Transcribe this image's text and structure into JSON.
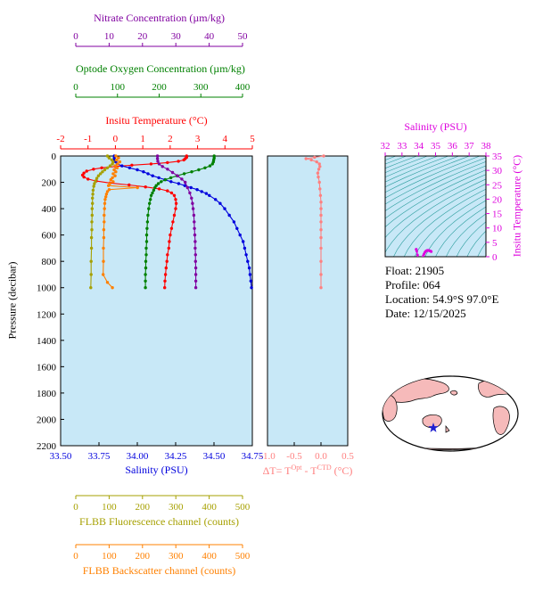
{
  "figure": {
    "plot_bg": "#c8e8f7",
    "contour_color": "#2b9d9d"
  },
  "axes": {
    "nitrate": {
      "label": "Nitrate Concentration (µm/kg)",
      "color": "#8000a0",
      "ticks": [
        0,
        10,
        20,
        30,
        40,
        50
      ],
      "range": [
        0,
        50
      ]
    },
    "oxygen": {
      "label": "Optode Oxygen Concentration (µm/kg)",
      "color": "#008000",
      "ticks": [
        0,
        100,
        200,
        300,
        400
      ],
      "range": [
        0,
        400
      ]
    },
    "temperature": {
      "label": "Insitu Temperature (°C)",
      "color": "#ff0000",
      "ticks": [
        -2,
        -1,
        0,
        1,
        2,
        3,
        4,
        5
      ],
      "range": [
        -2,
        5
      ]
    },
    "pressure": {
      "label": "Pressure (decibar)",
      "color": "#000000",
      "ticks": [
        0,
        200,
        400,
        600,
        800,
        1000,
        1200,
        1400,
        1600,
        1800,
        2000,
        2200
      ],
      "range": [
        0,
        2200
      ]
    },
    "salinity": {
      "label": "Salinity (PSU)",
      "color": "#0000dd",
      "ticks": [
        "33.50",
        "33.75",
        "34.00",
        "34.25",
        "34.50",
        "34.75"
      ],
      "range": [
        33.5,
        34.75
      ]
    },
    "delta_t": {
      "label_parts": {
        "pre": "ΔT= T",
        "sup1": "Opt",
        "mid": " - T",
        "sup2": "CTD",
        "post": " (°C)"
      },
      "color": "#ff8080",
      "ticks": [
        "-1.0",
        "-0.5",
        "0.0",
        "0.5"
      ],
      "range": [
        -1,
        0.5
      ]
    },
    "fluorescence": {
      "label": "FLBB Fluorescence channel (counts)",
      "color": "#a6a000",
      "ticks": [
        0,
        100,
        200,
        300,
        400,
        500
      ],
      "range": [
        0,
        500
      ]
    },
    "backscatter": {
      "label": "FLBB Backscatter channel (counts)",
      "color": "#ff8000",
      "ticks": [
        0,
        100,
        200,
        300,
        400,
        500
      ],
      "range": [
        0,
        500
      ]
    },
    "ts_salinity": {
      "label": "Salinity (PSU)",
      "color": "#dd00dd",
      "ticks": [
        32,
        33,
        34,
        35,
        36,
        37,
        38
      ],
      "range": [
        32,
        38
      ]
    },
    "ts_temperature": {
      "label": "Insitu Temperature (°C)",
      "color": "#dd00dd",
      "ticks": [
        0,
        5,
        10,
        15,
        20,
        25,
        30,
        35
      ],
      "range": [
        0,
        35
      ]
    }
  },
  "info": {
    "float": "Float:  21905",
    "profile": "Profile:  064",
    "location": "Location:  54.9°S  97.0°E",
    "date": "Date:  12/15/2025"
  },
  "map": {
    "land_color": "#f6baba",
    "ocean_color": "#ffffff",
    "star_color": "#2020d0"
  },
  "chart_data": [
    {
      "type": "line",
      "name": "temperature_profile",
      "x_axis": "Insitu Temperature (°C)",
      "y_axis": "Pressure (decibar)",
      "xlim": [
        -2,
        5
      ],
      "ylim": [
        0,
        2200
      ],
      "color": "#ff0000",
      "points": [
        [
          2.6,
          0
        ],
        [
          2.6,
          10
        ],
        [
          2.55,
          20
        ],
        [
          2.5,
          30
        ],
        [
          2.3,
          40
        ],
        [
          1.9,
          50
        ],
        [
          1.3,
          60
        ],
        [
          0.6,
          70
        ],
        [
          0.0,
          80
        ],
        [
          -0.5,
          90
        ],
        [
          -0.8,
          100
        ],
        [
          -1.05,
          115
        ],
        [
          -1.15,
          130
        ],
        [
          -1.2,
          145
        ],
        [
          -1.15,
          160
        ],
        [
          -1.0,
          175
        ],
        [
          -0.7,
          190
        ],
        [
          -0.2,
          205
        ],
        [
          0.5,
          220
        ],
        [
          1.1,
          235
        ],
        [
          1.6,
          250
        ],
        [
          1.9,
          265
        ],
        [
          2.05,
          280
        ],
        [
          2.15,
          300
        ],
        [
          2.2,
          330
        ],
        [
          2.22,
          360
        ],
        [
          2.2,
          400
        ],
        [
          2.15,
          450
        ],
        [
          2.1,
          500
        ],
        [
          2.05,
          550
        ],
        [
          2.0,
          600
        ],
        [
          1.97,
          650
        ],
        [
          1.95,
          700
        ],
        [
          1.9,
          750
        ],
        [
          1.88,
          800
        ],
        [
          1.85,
          850
        ],
        [
          1.83,
          900
        ],
        [
          1.81,
          950
        ],
        [
          1.8,
          1000
        ]
      ]
    },
    {
      "type": "line",
      "name": "salinity_profile",
      "x_axis": "Salinity (PSU)",
      "y_axis": "Pressure (decibar)",
      "xlim": [
        33.5,
        34.75
      ],
      "ylim": [
        0,
        2200
      ],
      "color": "#0000dd",
      "points": [
        [
          33.85,
          0
        ],
        [
          33.85,
          15
        ],
        [
          33.85,
          30
        ],
        [
          33.86,
          45
        ],
        [
          33.87,
          60
        ],
        [
          33.9,
          75
        ],
        [
          33.95,
          90
        ],
        [
          34.0,
          105
        ],
        [
          34.04,
          120
        ],
        [
          34.07,
          135
        ],
        [
          34.1,
          150
        ],
        [
          34.14,
          165
        ],
        [
          34.18,
          180
        ],
        [
          34.22,
          195
        ],
        [
          34.27,
          210
        ],
        [
          34.31,
          225
        ],
        [
          34.35,
          240
        ],
        [
          34.39,
          255
        ],
        [
          34.42,
          270
        ],
        [
          34.45,
          285
        ],
        [
          34.47,
          300
        ],
        [
          34.51,
          330
        ],
        [
          34.54,
          360
        ],
        [
          34.57,
          400
        ],
        [
          34.6,
          450
        ],
        [
          34.63,
          500
        ],
        [
          34.65,
          550
        ],
        [
          34.67,
          600
        ],
        [
          34.69,
          650
        ],
        [
          34.7,
          700
        ],
        [
          34.71,
          750
        ],
        [
          34.72,
          800
        ],
        [
          34.73,
          850
        ],
        [
          34.735,
          900
        ],
        [
          34.74,
          950
        ],
        [
          34.745,
          1000
        ]
      ]
    },
    {
      "type": "line",
      "name": "oxygen_profile",
      "x_axis": "Optode Oxygen Concentration (µm/kg)",
      "y_axis": "Pressure (decibar)",
      "xlim": [
        0,
        400
      ],
      "ylim": [
        0,
        2200
      ],
      "color": "#008000",
      "points": [
        [
          332,
          0
        ],
        [
          332,
          15
        ],
        [
          331,
          30
        ],
        [
          330,
          45
        ],
        [
          328,
          60
        ],
        [
          322,
          75
        ],
        [
          310,
          90
        ],
        [
          295,
          105
        ],
        [
          278,
          120
        ],
        [
          260,
          135
        ],
        [
          243,
          150
        ],
        [
          228,
          165
        ],
        [
          215,
          180
        ],
        [
          205,
          195
        ],
        [
          198,
          210
        ],
        [
          193,
          225
        ],
        [
          190,
          240
        ],
        [
          187,
          260
        ],
        [
          184,
          280
        ],
        [
          181,
          300
        ],
        [
          179,
          330
        ],
        [
          177,
          360
        ],
        [
          175,
          400
        ],
        [
          173,
          450
        ],
        [
          172,
          500
        ],
        [
          171,
          550
        ],
        [
          170,
          600
        ],
        [
          170,
          650
        ],
        [
          169,
          700
        ],
        [
          169,
          750
        ],
        [
          168,
          800
        ],
        [
          168,
          850
        ],
        [
          167,
          900
        ],
        [
          167,
          950
        ],
        [
          167,
          1000
        ]
      ]
    },
    {
      "type": "line",
      "name": "nitrate_profile",
      "x_axis": "Nitrate Concentration (µm/kg)",
      "y_axis": "Pressure (decibar)",
      "xlim": [
        0,
        50
      ],
      "ylim": [
        0,
        2200
      ],
      "color": "#8000a0",
      "points": [
        [
          24.5,
          0
        ],
        [
          24.5,
          20
        ],
        [
          24.6,
          40
        ],
        [
          25,
          60
        ],
        [
          26,
          80
        ],
        [
          27.5,
          100
        ],
        [
          29,
          125
        ],
        [
          30.5,
          150
        ],
        [
          31.8,
          175
        ],
        [
          32.8,
          200
        ],
        [
          33.5,
          240
        ],
        [
          34.2,
          280
        ],
        [
          34.7,
          320
        ],
        [
          35.0,
          360
        ],
        [
          35.2,
          400
        ],
        [
          35.4,
          450
        ],
        [
          35.5,
          500
        ],
        [
          35.6,
          550
        ],
        [
          35.7,
          600
        ],
        [
          35.8,
          650
        ],
        [
          35.8,
          700
        ],
        [
          35.9,
          750
        ],
        [
          35.9,
          800
        ],
        [
          36.0,
          850
        ],
        [
          36.0,
          900
        ],
        [
          36.0,
          950
        ],
        [
          36.0,
          1000
        ]
      ]
    },
    {
      "type": "line",
      "name": "fluorescence_profile",
      "x_axis": "FLBB Fluorescence channel (counts)",
      "y_axis": "Pressure (decibar)",
      "xlim": [
        0,
        500
      ],
      "ylim": [
        0,
        2200
      ],
      "color": "#a6a000",
      "points": [
        [
          95,
          0
        ],
        [
          100,
          15
        ],
        [
          108,
          30
        ],
        [
          112,
          45
        ],
        [
          110,
          60
        ],
        [
          103,
          75
        ],
        [
          95,
          90
        ],
        [
          87,
          105
        ],
        [
          80,
          120
        ],
        [
          74,
          135
        ],
        [
          68,
          150
        ],
        [
          63,
          170
        ],
        [
          59,
          190
        ],
        [
          56,
          210
        ],
        [
          54,
          230
        ],
        [
          52,
          260
        ],
        [
          51,
          290
        ],
        [
          50,
          320
        ],
        [
          50,
          360
        ],
        [
          49,
          400
        ],
        [
          49,
          450
        ],
        [
          48,
          500
        ],
        [
          48,
          560
        ],
        [
          47,
          620
        ],
        [
          47,
          700
        ],
        [
          46,
          800
        ],
        [
          46,
          900
        ],
        [
          45,
          1000
        ]
      ]
    },
    {
      "type": "line",
      "name": "backscatter_profile",
      "x_axis": "FLBB Backscatter channel (counts)",
      "y_axis": "Pressure (decibar)",
      "xlim": [
        0,
        500
      ],
      "ylim": [
        0,
        2200
      ],
      "color": "#ff8000",
      "points": [
        [
          120,
          0
        ],
        [
          128,
          15
        ],
        [
          122,
          30
        ],
        [
          132,
          45
        ],
        [
          125,
          60
        ],
        [
          118,
          75
        ],
        [
          124,
          90
        ],
        [
          115,
          105
        ],
        [
          120,
          120
        ],
        [
          112,
          135
        ],
        [
          118,
          150
        ],
        [
          110,
          165
        ],
        [
          105,
          180
        ],
        [
          112,
          195
        ],
        [
          102,
          210
        ],
        [
          98,
          225
        ],
        [
          185,
          240
        ],
        [
          100,
          255
        ],
        [
          95,
          270
        ],
        [
          92,
          290
        ],
        [
          90,
          310
        ],
        [
          88,
          330
        ],
        [
          87,
          360
        ],
        [
          86,
          400
        ],
        [
          85,
          450
        ],
        [
          85,
          500
        ],
        [
          84,
          560
        ],
        [
          84,
          620
        ],
        [
          83,
          700
        ],
        [
          83,
          800
        ],
        [
          82,
          900
        ],
        [
          95,
          960
        ],
        [
          110,
          1000
        ]
      ]
    },
    {
      "type": "line",
      "name": "delta_t_profile",
      "x_axis": "ΔT= TOpt - TCTD (°C)",
      "y_axis": "Pressure (decibar)",
      "xlim": [
        -1,
        0.5
      ],
      "ylim": [
        0,
        2200
      ],
      "color": "#ff8080",
      "points": [
        [
          0.05,
          0
        ],
        [
          -0.12,
          10
        ],
        [
          -0.28,
          20
        ],
        [
          -0.18,
          30
        ],
        [
          -0.08,
          45
        ],
        [
          -0.03,
          60
        ],
        [
          -0.02,
          80
        ],
        [
          -0.04,
          100
        ],
        [
          -0.06,
          130
        ],
        [
          -0.05,
          160
        ],
        [
          -0.03,
          200
        ],
        [
          -0.02,
          250
        ],
        [
          -0.01,
          300
        ],
        [
          0.0,
          350
        ],
        [
          0.0,
          400
        ],
        [
          0.0,
          450
        ],
        [
          0.0,
          500
        ],
        [
          0.0,
          560
        ],
        [
          0.0,
          620
        ],
        [
          0.0,
          700
        ],
        [
          0.0,
          800
        ],
        [
          0.0,
          900
        ],
        [
          0.0,
          1000
        ]
      ]
    },
    {
      "type": "scatter",
      "name": "ts_diagram",
      "x_axis": "Salinity (PSU)",
      "y_axis": "Insitu Temperature (°C)",
      "xlim": [
        32,
        38
      ],
      "ylim": [
        0,
        35
      ],
      "color": "#dd00dd",
      "points": [
        [
          33.85,
          2.6
        ],
        [
          33.85,
          2.5
        ],
        [
          33.88,
          1.9
        ],
        [
          33.93,
          0.6
        ],
        [
          33.95,
          -0.5
        ],
        [
          34.0,
          -0.9
        ],
        [
          34.04,
          -1.05
        ],
        [
          34.07,
          -1.2
        ],
        [
          34.1,
          -1.2
        ],
        [
          34.14,
          -1.1
        ],
        [
          34.18,
          -0.85
        ],
        [
          34.22,
          -0.3
        ],
        [
          34.27,
          0.4
        ],
        [
          34.31,
          0.9
        ],
        [
          34.35,
          1.4
        ],
        [
          34.39,
          1.7
        ],
        [
          34.42,
          1.9
        ],
        [
          34.45,
          2.0
        ],
        [
          34.47,
          2.1
        ],
        [
          34.51,
          2.2
        ],
        [
          34.54,
          2.2
        ],
        [
          34.57,
          2.2
        ],
        [
          34.6,
          2.15
        ],
        [
          34.63,
          2.1
        ],
        [
          34.67,
          2.0
        ],
        [
          34.7,
          1.95
        ],
        [
          34.72,
          1.88
        ],
        [
          34.73,
          1.84
        ],
        [
          34.745,
          1.8
        ]
      ]
    }
  ]
}
